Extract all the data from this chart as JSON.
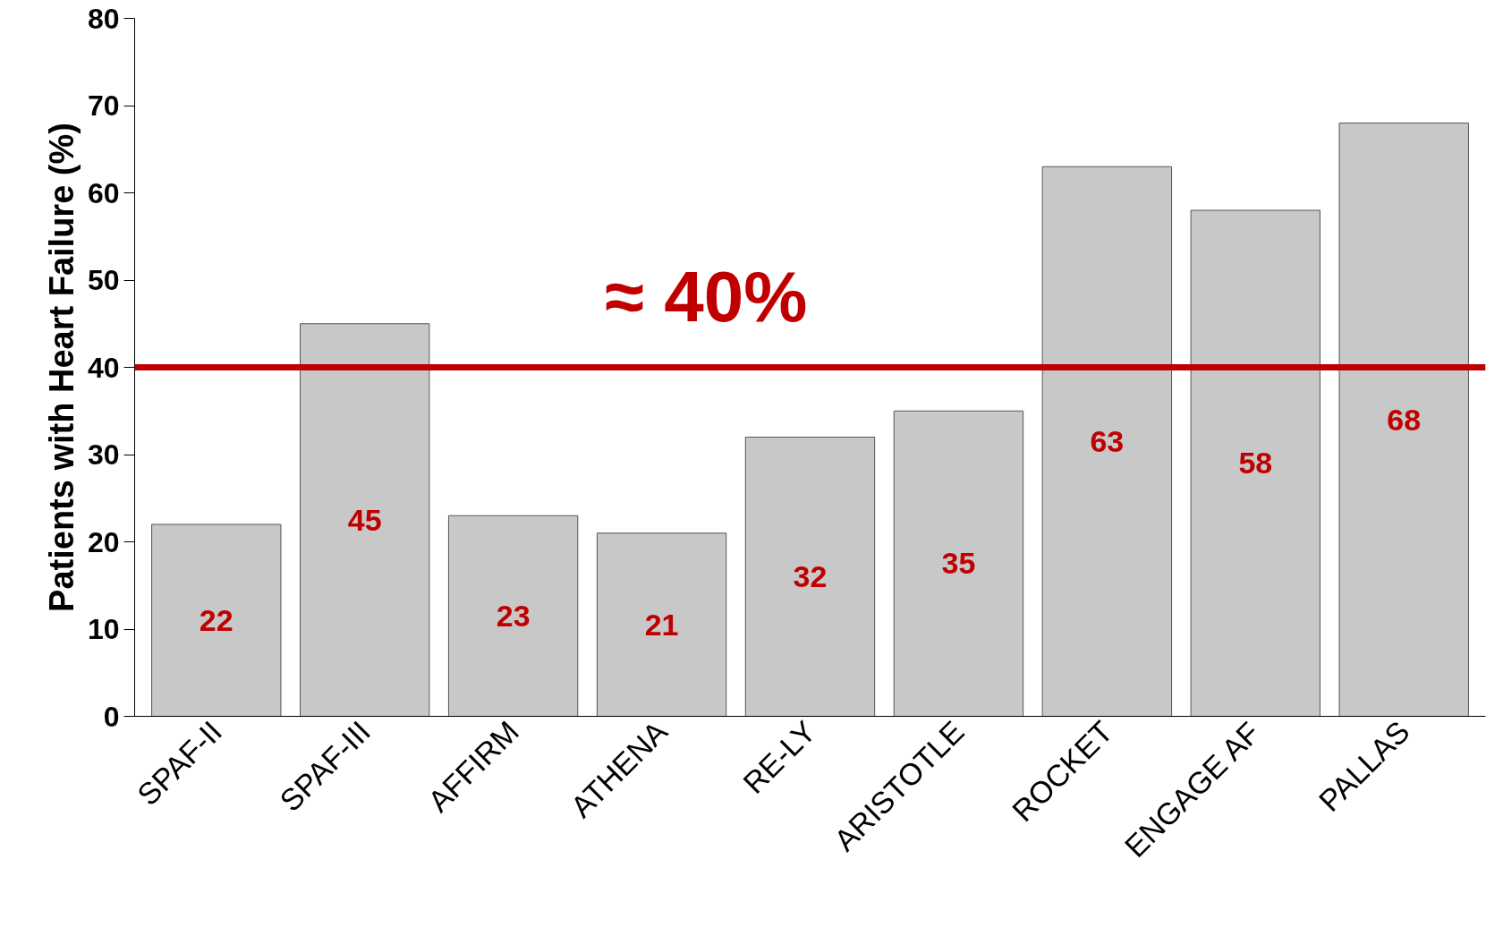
{
  "chart_data": {
    "type": "bar",
    "ylabel": "Patients with Heart Failure (%)",
    "categories": [
      "SPAF-II",
      "SPAF-III",
      "AFFIRM",
      "ATHENA",
      "RE-LY",
      "ARISTOTLE",
      "ROCKET",
      "ENGAGE AF",
      "PALLAS"
    ],
    "values": [
      22,
      45,
      23,
      21,
      32,
      35,
      63,
      58,
      68
    ],
    "color": "#c8c8c8",
    "data_labels": true,
    "ylim": [
      0,
      80
    ],
    "yticks": [
      0,
      10,
      20,
      30,
      40,
      50,
      60,
      70,
      80
    ],
    "ref_lines": [
      {
        "axis": "y",
        "value": 40,
        "label": "≈ 40%",
        "color": "#c00000"
      }
    ]
  }
}
